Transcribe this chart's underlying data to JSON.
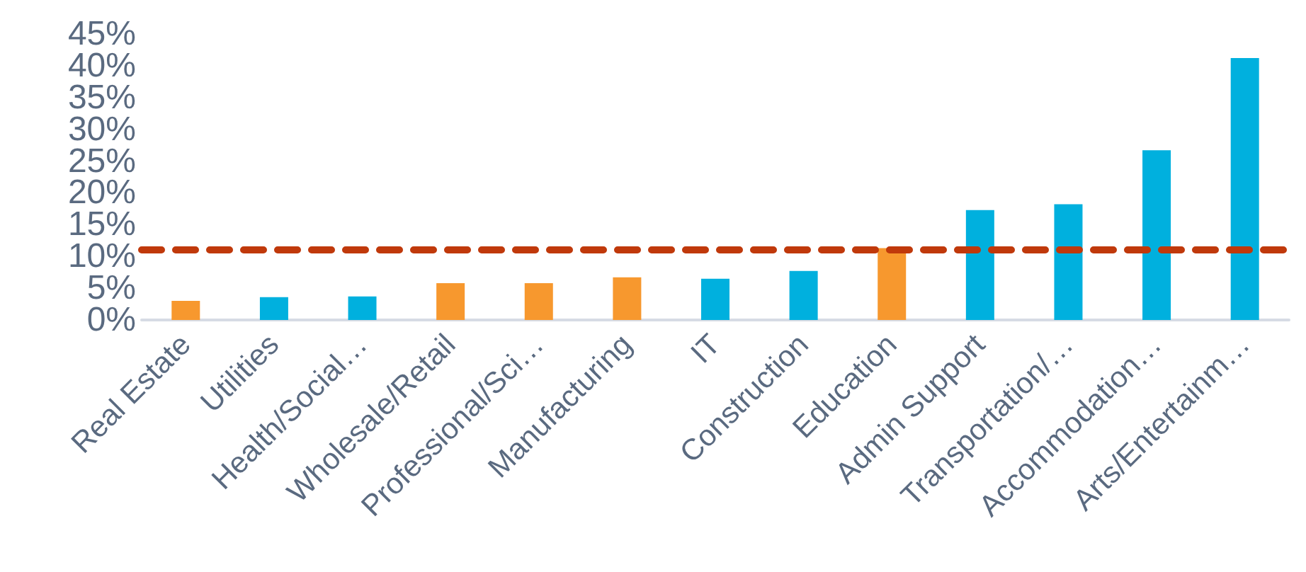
{
  "chart_data": {
    "type": "bar",
    "categories": [
      "Real Estate",
      "Utilities",
      "Health/Social…",
      "Wholesale/Retail",
      "Professional/Sci…",
      "Manufacturing",
      "IT",
      "Construction",
      "Education",
      "Admin Support",
      "Transportation/…",
      "Accommodation…",
      "Arts/Entertainm…"
    ],
    "values": [
      3.0,
      3.6,
      3.7,
      5.8,
      5.8,
      6.7,
      6.5,
      7.7,
      11.3,
      17.3,
      18.2,
      26.7,
      41.2
    ],
    "colors": [
      "#f7982e",
      "#00b0de",
      "#00b0de",
      "#f7982e",
      "#f7982e",
      "#f7982e",
      "#00b0de",
      "#00b0de",
      "#f7982e",
      "#00b0de",
      "#00b0de",
      "#00b0de",
      "#00b0de"
    ],
    "ylim": [
      0,
      45
    ],
    "yticks": [
      {
        "value": 0,
        "label": "0%"
      },
      {
        "value": 5,
        "label": "5%"
      },
      {
        "value": 10,
        "label": "10%"
      },
      {
        "value": 15,
        "label": "15%"
      },
      {
        "value": 20,
        "label": "20%"
      },
      {
        "value": 25,
        "label": "25%"
      },
      {
        "value": 30,
        "label": "30%"
      },
      {
        "value": 35,
        "label": "35%"
      },
      {
        "value": 40,
        "label": "40%"
      },
      {
        "value": 45,
        "label": "45%"
      }
    ],
    "ref_lines": [
      {
        "axis": "y",
        "value": 11.1,
        "color": "#c0390b",
        "line_style": "dashed"
      }
    ],
    "grid": false
  }
}
